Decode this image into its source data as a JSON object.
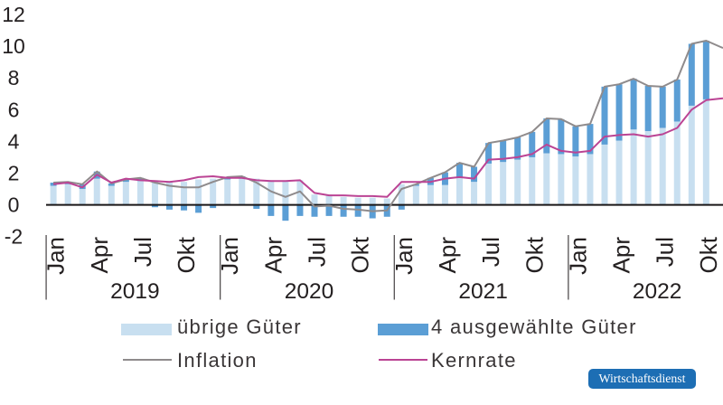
{
  "chart_data": {
    "type": "bar",
    "subtype": "stacked-monthly-bars-with-lines",
    "title": "",
    "xlabel": "",
    "ylabel": "",
    "ylim": [
      -2,
      12
    ],
    "yticks": [
      12,
      10,
      8,
      6,
      4,
      2,
      0,
      -2
    ],
    "grid": false,
    "legend_position": "bottom",
    "x_range_note": "monthly values Jan 2019 - Okt 2022 for bars; lines continue one month further to Nov 2022",
    "years": [
      {
        "label": "2019",
        "month_ticks": [
          "Jan",
          "Apr",
          "Jul",
          "Okt"
        ]
      },
      {
        "label": "2020",
        "month_ticks": [
          "Jan",
          "Apr",
          "Jul",
          "Okt"
        ]
      },
      {
        "label": "2021",
        "month_ticks": [
          "Jan",
          "Apr",
          "Jul",
          "Okt"
        ]
      },
      {
        "label": "2022",
        "month_ticks": [
          "Jan",
          "Apr",
          "Jul",
          "Okt"
        ]
      }
    ],
    "series": [
      {
        "name": "übrige Güter",
        "type": "bar",
        "color": "#c8dff0",
        "values": [
          1.2,
          1.3,
          1.0,
          1.65,
          1.2,
          1.45,
          1.5,
          1.55,
          1.5,
          1.45,
          1.6,
          1.65,
          1.6,
          1.65,
          1.65,
          1.55,
          1.5,
          1.55,
          0.65,
          0.65,
          0.5,
          0.45,
          0.45,
          0.4,
          1.3,
          1.2,
          1.25,
          1.25,
          1.75,
          1.45,
          2.6,
          2.7,
          2.85,
          3.0,
          3.25,
          3.2,
          3.05,
          3.2,
          3.8,
          4.05,
          4.75,
          4.65,
          4.85,
          5.25,
          6.25,
          6.65
        ]
      },
      {
        "name": "4 ausgewählte Güter",
        "type": "bar",
        "color": "#5b9ed5",
        "values": [
          0.2,
          0.15,
          0.3,
          0.45,
          0.15,
          0.15,
          0.2,
          -0.15,
          -0.3,
          -0.35,
          -0.5,
          -0.2,
          0.15,
          0.15,
          -0.25,
          -0.7,
          -1.0,
          -0.7,
          -0.75,
          -0.7,
          -0.75,
          -0.75,
          -0.85,
          -0.75,
          -0.3,
          0.1,
          0.45,
          0.8,
          0.9,
          0.95,
          1.3,
          1.35,
          1.4,
          1.6,
          2.2,
          2.2,
          1.9,
          1.9,
          3.65,
          3.55,
          3.2,
          2.85,
          2.6,
          2.65,
          3.9,
          3.7
        ]
      },
      {
        "name": "Inflation",
        "type": "line",
        "color": "#8f8b8c",
        "values": [
          1.4,
          1.45,
          1.3,
          2.1,
          1.35,
          1.6,
          1.7,
          1.4,
          1.2,
          1.1,
          1.1,
          1.45,
          1.75,
          1.8,
          1.4,
          0.85,
          0.5,
          0.85,
          -0.1,
          -0.05,
          -0.25,
          -0.3,
          -0.4,
          -0.35,
          1.0,
          1.3,
          1.7,
          2.05,
          2.65,
          2.4,
          3.9,
          4.05,
          4.25,
          4.6,
          5.45,
          5.4,
          4.95,
          5.1,
          7.45,
          7.6,
          7.95,
          7.5,
          7.45,
          7.9,
          10.15,
          10.35,
          9.95
        ]
      },
      {
        "name": "Kernrate",
        "type": "line",
        "color": "#bb4494",
        "values": [
          1.3,
          1.4,
          1.1,
          1.9,
          1.4,
          1.65,
          1.55,
          1.5,
          1.45,
          1.55,
          1.75,
          1.8,
          1.7,
          1.7,
          1.55,
          1.5,
          1.5,
          1.55,
          0.75,
          0.6,
          0.6,
          0.55,
          0.55,
          0.5,
          1.45,
          1.45,
          1.45,
          1.65,
          1.75,
          1.65,
          2.85,
          2.9,
          3.0,
          3.2,
          3.8,
          3.4,
          3.3,
          3.4,
          4.3,
          4.4,
          4.45,
          4.3,
          4.45,
          4.85,
          6.0,
          6.6,
          6.7
        ]
      }
    ],
    "colors": {
      "axis_text": "#242021",
      "zero_line": "#1a1718",
      "year_divider": "#454142"
    }
  },
  "legend": {
    "items": [
      {
        "label": "übrige Güter",
        "swatch": "bar",
        "color": "#c8dff0"
      },
      {
        "label": "4 ausgewählte Güter",
        "swatch": "bar",
        "color": "#5b9ed5"
      },
      {
        "label": "Inflation",
        "swatch": "line",
        "color": "#8f8b8c"
      },
      {
        "label": "Kernrate",
        "swatch": "line",
        "color": "#bb4494"
      }
    ]
  },
  "badge": {
    "label": "Wirtschaftsdienst",
    "color": "#1d6eb4",
    "text_color": "#ffffff"
  }
}
